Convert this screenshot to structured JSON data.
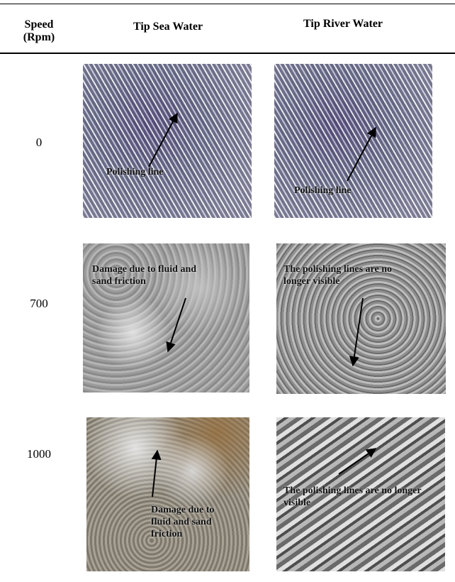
{
  "table": {
    "header": [
      "Speed (Rpm)",
      "Tip Sea Water",
      "Tip River Water"
    ],
    "rows": [
      {
        "speed": 0,
        "sea_water": "Polishing line",
        "river_water": "Polishing line"
      },
      {
        "speed": 700,
        "sea_water": "Damage due to fluid and sand friction",
        "river_water": "The polishing lines are no longer visible"
      },
      {
        "speed": 1000,
        "sea_water": "Damage due to fluid and sand friction",
        "river_water": "The polishing lines are no longer visible"
      }
    ]
  }
}
